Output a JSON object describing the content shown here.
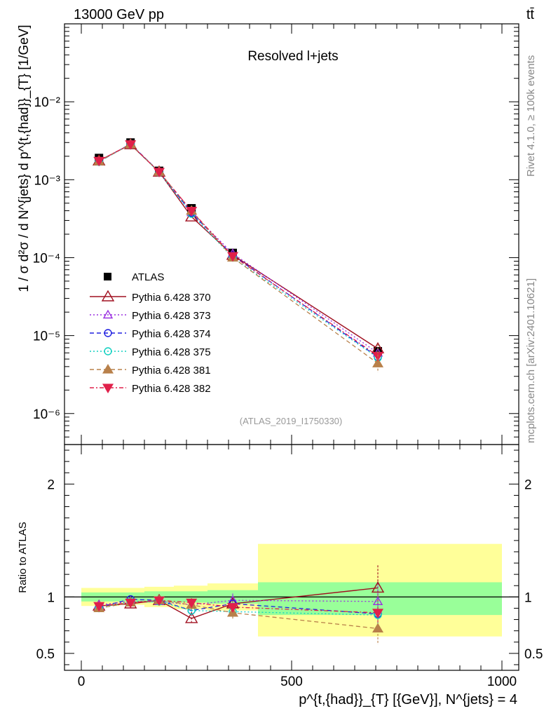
{
  "header": {
    "energy": "13000 GeV pp",
    "process": "tt̄"
  },
  "side_labels": {
    "rivet": "Rivet 4.1.0, ≥ 100k events",
    "mcplots": "mcplots.cern.ch [arXiv:2401.10621]"
  },
  "chart_data": [
    {
      "type": "line",
      "panel": "main",
      "title": "Resolved l+jets",
      "analysis_label": "(ATLAS_2019_I1750330)",
      "ylabel": "1 / σ d²σ / d N^{jets} d p^{t,{had}}_{T} [1/GeV]",
      "yscale": "log",
      "xlim": [
        -40,
        1040
      ],
      "ylim": [
        4e-07,
        0.1
      ],
      "ytick_labels": [
        "10⁻⁶",
        "10⁻⁵",
        "10⁻⁴",
        "10⁻³",
        "10⁻²"
      ],
      "x": [
        42,
        117,
        185,
        262,
        360,
        705
      ],
      "atlas": [
        0.0019,
        0.003,
        0.0013,
        0.00043,
        0.000115,
        6.3e-06
      ],
      "series": [
        {
          "name": "Pythia 6.428 370",
          "color": "#a01020",
          "dash": "",
          "marker": "tri-open",
          "values": [
            0.00175,
            0.00283,
            0.00126,
            0.000335,
            0.000108,
            6.8e-06
          ]
        },
        {
          "name": "Pythia 6.428 373",
          "color": "#9a30e0",
          "dash": "2,3",
          "marker": "tri-open-small",
          "values": [
            0.00172,
            0.00288,
            0.00125,
            0.00038,
            0.000113,
            6e-06
          ]
        },
        {
          "name": "Pythia 6.428 374",
          "color": "#2020e0",
          "dash": "6,4",
          "marker": "circle-open",
          "values": [
            0.0017,
            0.00288,
            0.00127,
            0.000375,
            0.000107,
            5.3e-06
          ]
        },
        {
          "name": "Pythia 6.428 375",
          "color": "#10d0c0",
          "dash": "2,3",
          "marker": "circle-open",
          "values": [
            0.0017,
            0.00285,
            0.00124,
            0.000365,
            0.0001,
            5.2e-06
          ]
        },
        {
          "name": "Pythia 6.428 381",
          "color": "#b8804a",
          "dash": "6,4",
          "marker": "tri-filled",
          "values": [
            0.00172,
            0.00285,
            0.00126,
            0.0004,
            0.0001,
            4.4e-06
          ]
        },
        {
          "name": "Pythia 6.428 382",
          "color": "#e0204a",
          "dash": "6,3,2,3",
          "marker": "tri-down-filled",
          "values": [
            0.00175,
            0.00285,
            0.00126,
            0.0004,
            0.000105,
            5.5e-06
          ]
        }
      ]
    },
    {
      "type": "line",
      "panel": "ratio",
      "ylabel": "Ratio to ATLAS",
      "xlabel": "p^{t,{had}}_{T} [{GeV}], N^{jets} = 4",
      "xlim": [
        -40,
        1040
      ],
      "ylim": [
        0.35,
        2.35
      ],
      "xticks": [
        0,
        500,
        1000
      ],
      "xtick_labels": [
        "0",
        "500",
        "1000"
      ],
      "yticks": [
        0.5,
        1,
        2
      ],
      "ytick_labels": [
        "0.5",
        "1",
        "2"
      ],
      "bins": [
        [
          0,
          90
        ],
        [
          90,
          150
        ],
        [
          150,
          220
        ],
        [
          220,
          300
        ],
        [
          300,
          420
        ],
        [
          420,
          1000
        ]
      ],
      "band_green": [
        [
          0.96,
          1.04
        ],
        [
          0.96,
          1.04
        ],
        [
          0.95,
          1.05
        ],
        [
          0.95,
          1.05
        ],
        [
          0.94,
          1.06
        ],
        [
          0.84,
          1.13
        ]
      ],
      "band_yellow": [
        [
          0.92,
          1.08
        ],
        [
          0.93,
          1.08
        ],
        [
          0.91,
          1.09
        ],
        [
          0.89,
          1.1
        ],
        [
          0.88,
          1.12
        ],
        [
          0.65,
          1.47
        ]
      ],
      "x": [
        42,
        117,
        185,
        262,
        360,
        705
      ],
      "series": [
        {
          "name": "Pythia 6.428 370",
          "values": [
            0.92,
            0.94,
            0.97,
            0.81,
            0.94,
            1.08
          ],
          "err": [
            0.02,
            0.02,
            0.02,
            0.04,
            0.06,
            0.2
          ]
        },
        {
          "name": "Pythia 6.428 373",
          "values": [
            0.93,
            0.96,
            0.96,
            0.93,
            0.97,
            0.96
          ],
          "err": [
            0.02,
            0.02,
            0.02,
            0.04,
            0.06,
            0.17
          ]
        },
        {
          "name": "Pythia 6.428 374",
          "values": [
            0.91,
            0.98,
            0.97,
            0.88,
            0.94,
            0.85
          ],
          "err": [
            0.02,
            0.02,
            0.02,
            0.04,
            0.06,
            0.15
          ]
        },
        {
          "name": "Pythia 6.428 375",
          "values": [
            0.9,
            0.96,
            0.96,
            0.88,
            0.87,
            0.84
          ],
          "err": [
            0.02,
            0.02,
            0.02,
            0.04,
            0.06,
            0.15
          ]
        },
        {
          "name": "Pythia 6.428 381",
          "values": [
            0.9,
            0.95,
            0.97,
            0.93,
            0.86,
            0.72
          ],
          "err": [
            0.02,
            0.02,
            0.02,
            0.04,
            0.06,
            0.14
          ]
        },
        {
          "name": "Pythia 6.428 382",
          "values": [
            0.92,
            0.95,
            0.97,
            0.95,
            0.91,
            0.86
          ],
          "err": [
            0.02,
            0.02,
            0.02,
            0.04,
            0.06,
            0.15
          ]
        }
      ]
    }
  ],
  "legend": {
    "data_label": "ATLAS",
    "position": "lower-left"
  }
}
